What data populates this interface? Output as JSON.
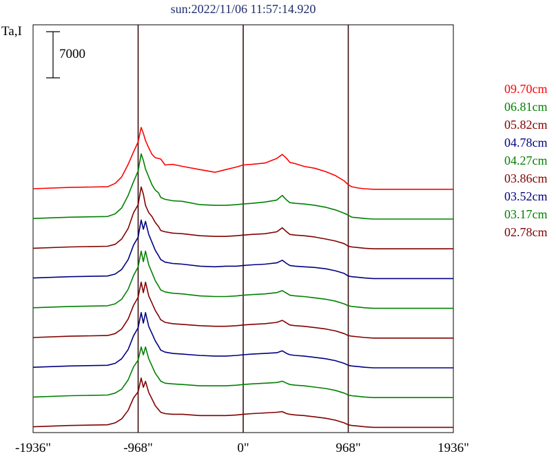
{
  "chart_data": {
    "type": "line",
    "title": "sun:2022/11/06 11:57:14.920",
    "ylabel": "Ta,I",
    "scale_bar_label": "7000",
    "scale_bar_value": 7000,
    "xlim": [
      -1936,
      1936
    ],
    "xticks": [
      {
        "value": -1936,
        "label": "-1936\""
      },
      {
        "value": -968,
        "label": "-968\""
      },
      {
        "value": 0,
        "label": "0\""
      },
      {
        "value": 968,
        "label": "968\""
      },
      {
        "value": 1936,
        "label": "1936\""
      }
    ],
    "vlines": [
      -968,
      0,
      968
    ],
    "x": [
      -1936,
      -1600,
      -1250,
      -1180,
      -1120,
      -1060,
      -1010,
      -968,
      -940,
      -920,
      -900,
      -870,
      -840,
      -810,
      -780,
      -760,
      -720,
      -650,
      -560,
      -400,
      -260,
      -160,
      -60,
      0,
      80,
      200,
      310,
      360,
      400,
      430,
      480,
      560,
      660,
      760,
      850,
      930,
      968,
      1000,
      1060,
      1120,
      1200,
      1300,
      1500,
      1936
    ],
    "series": [
      {
        "name": "09.70cm",
        "color": "#ff0000",
        "values": [
          0,
          200,
          300,
          800,
          1800,
          3700,
          5600,
          7100,
          9300,
          8400,
          7300,
          6200,
          5200,
          4700,
          4600,
          4500,
          3600,
          3700,
          3400,
          2900,
          2500,
          2900,
          3300,
          3600,
          3700,
          3900,
          4600,
          5200,
          4600,
          4000,
          3800,
          3400,
          3100,
          2600,
          2000,
          1200,
          600,
          300,
          100,
          0,
          -80,
          -80,
          -80,
          -80
        ]
      },
      {
        "name": "06.81cm",
        "color": "#008000",
        "values": [
          0,
          200,
          300,
          700,
          1600,
          3500,
          5600,
          7200,
          9800,
          8800,
          7500,
          6300,
          5100,
          4300,
          3900,
          3200,
          2900,
          2700,
          2600,
          2100,
          2000,
          2000,
          2100,
          2200,
          2300,
          2500,
          2800,
          3500,
          2800,
          2400,
          2300,
          2200,
          2000,
          1700,
          1300,
          800,
          500,
          200,
          100,
          0,
          -80,
          -80,
          -80,
          -80
        ]
      },
      {
        "name": "05.82cm",
        "color": "#800000",
        "values": [
          0,
          200,
          300,
          600,
          1400,
          3000,
          5400,
          6600,
          9300,
          8200,
          6500,
          5400,
          4800,
          3900,
          3300,
          2700,
          2500,
          2300,
          2200,
          1900,
          1800,
          1800,
          1900,
          2000,
          2100,
          2200,
          2500,
          3100,
          2500,
          2100,
          2000,
          1900,
          1700,
          1400,
          1100,
          700,
          300,
          200,
          100,
          0,
          -80,
          -80,
          -80,
          -80
        ]
      },
      {
        "name": "04.78cm",
        "color": "#000080",
        "values": [
          0,
          200,
          300,
          600,
          1300,
          2800,
          5000,
          6200,
          8800,
          7400,
          8600,
          6600,
          5400,
          4200,
          3400,
          2800,
          2400,
          2200,
          2100,
          1800,
          1700,
          1800,
          1800,
          1900,
          2000,
          2100,
          2300,
          2700,
          2200,
          1900,
          1800,
          1700,
          1600,
          1400,
          1100,
          700,
          300,
          200,
          100,
          0,
          -80,
          -80,
          -80,
          -80
        ]
      },
      {
        "name": "04.27cm",
        "color": "#008000",
        "values": [
          0,
          200,
          300,
          600,
          1300,
          2800,
          4900,
          6200,
          8600,
          7000,
          8600,
          6500,
          5300,
          4100,
          3300,
          2700,
          2400,
          2200,
          2100,
          1800,
          1700,
          1700,
          1800,
          1900,
          2000,
          2100,
          2300,
          2600,
          2200,
          1900,
          1800,
          1700,
          1500,
          1300,
          1000,
          600,
          300,
          200,
          100,
          0,
          -80,
          -80,
          -80,
          -80
        ]
      },
      {
        "name": "03.86cm",
        "color": "#800000",
        "values": [
          0,
          200,
          300,
          600,
          1300,
          2800,
          4900,
          6100,
          8400,
          6800,
          8400,
          6300,
          5200,
          4100,
          3300,
          2700,
          2300,
          2100,
          2000,
          1800,
          1700,
          1700,
          1800,
          1900,
          2000,
          2100,
          2300,
          2600,
          2200,
          1900,
          1800,
          1700,
          1500,
          1300,
          1000,
          600,
          300,
          200,
          100,
          0,
          -80,
          -80,
          -80,
          -80
        ]
      },
      {
        "name": "03.52cm",
        "color": "#000080",
        "values": [
          0,
          200,
          300,
          600,
          1300,
          2700,
          4800,
          6000,
          8300,
          6700,
          8300,
          6200,
          5100,
          4000,
          3200,
          2600,
          2300,
          2100,
          2000,
          1800,
          1700,
          1700,
          1800,
          1900,
          2000,
          2100,
          2200,
          2500,
          2100,
          1900,
          1800,
          1700,
          1500,
          1300,
          1000,
          600,
          300,
          200,
          100,
          0,
          -80,
          -80,
          -80,
          -80
        ]
      },
      {
        "name": "03.17cm",
        "color": "#008000",
        "values": [
          0,
          200,
          300,
          600,
          1200,
          2600,
          4600,
          5600,
          7600,
          6400,
          7600,
          5800,
          4700,
          3600,
          2900,
          2400,
          2100,
          2000,
          1900,
          1700,
          1700,
          1700,
          1800,
          1900,
          2000,
          2100,
          2200,
          2400,
          2100,
          1900,
          1800,
          1700,
          1500,
          1300,
          1000,
          600,
          300,
          200,
          100,
          0,
          -80,
          -80,
          -80,
          -80
        ]
      },
      {
        "name": "02.78cm",
        "color": "#800000",
        "values": [
          0,
          200,
          300,
          600,
          1200,
          2500,
          4400,
          5300,
          7400,
          6000,
          6900,
          5200,
          4200,
          3200,
          2600,
          2200,
          2000,
          1900,
          1900,
          1700,
          1700,
          1700,
          1800,
          1900,
          2000,
          2100,
          2200,
          2300,
          2000,
          1900,
          1800,
          1700,
          1500,
          1300,
          1000,
          600,
          300,
          200,
          100,
          0,
          -80,
          -80,
          -80,
          -80
        ]
      }
    ]
  }
}
